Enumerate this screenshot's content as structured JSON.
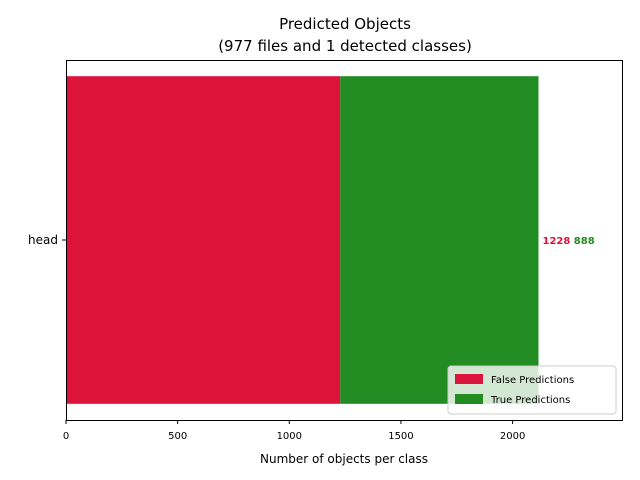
{
  "chart_data": {
    "type": "bar",
    "orientation": "horizontal",
    "stacked": true,
    "title": "Predicted Objects",
    "subtitle": "(977 files and 1 detected classes)",
    "xlabel": "Number of objects per class",
    "ylabel": "",
    "categories": [
      "head"
    ],
    "series": [
      {
        "name": "False Predictions",
        "values": [
          1228
        ],
        "color": "#dc143c"
      },
      {
        "name": "True Predictions",
        "values": [
          888
        ],
        "color": "#228b22"
      }
    ],
    "xlim": [
      0,
      2490
    ],
    "xticks": [
      0,
      500,
      1000,
      1500,
      2000
    ],
    "xtick_labels": [
      "0",
      "500",
      "1000",
      "1500",
      "2000"
    ],
    "data_labels": [
      {
        "text": "1228",
        "color": "#dc143c"
      },
      {
        "text": "888",
        "color": "#228b22"
      }
    ],
    "grid": false,
    "legend_placement": "lower-right"
  }
}
